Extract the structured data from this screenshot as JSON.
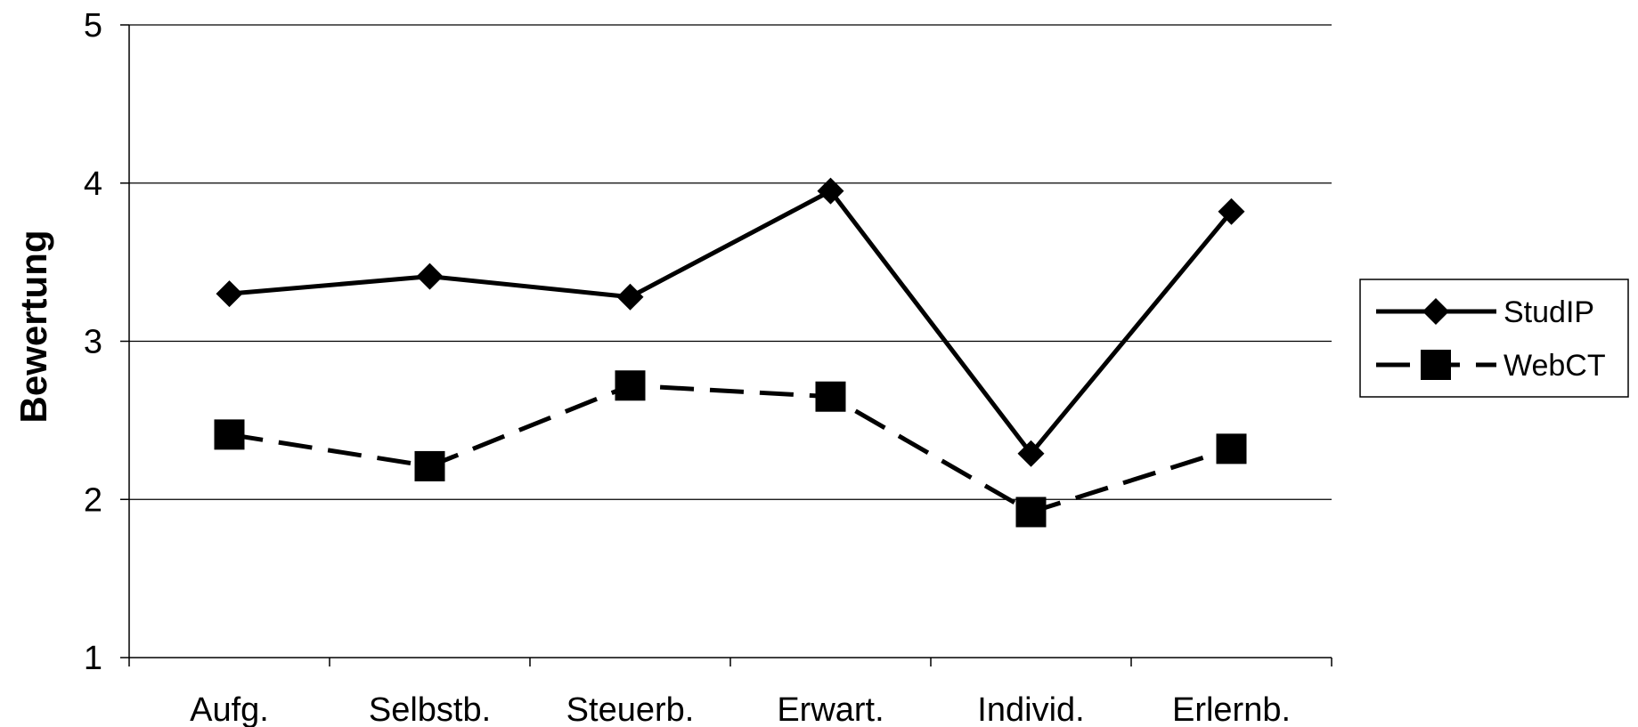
{
  "chart_data": {
    "type": "line",
    "categories": [
      "Aufg.",
      "Selbstb.",
      "Steuerb.",
      "Erwart.",
      "Individ.",
      "Erlernb."
    ],
    "series": [
      {
        "name": "StudIP",
        "values": [
          3.3,
          3.41,
          3.28,
          3.95,
          2.29,
          3.82
        ],
        "line": "solid",
        "marker": "diamond",
        "color": "#000000"
      },
      {
        "name": "WebCT",
        "values": [
          2.41,
          2.21,
          2.72,
          2.65,
          1.92,
          2.32
        ],
        "line": "dashed",
        "marker": "square",
        "color": "#000000"
      }
    ],
    "title": "",
    "xlabel": "",
    "ylabel": "Bewertung",
    "ylim": [
      1,
      5
    ],
    "yticks": [
      "1",
      "2",
      "3",
      "4",
      "5"
    ],
    "grid": "horizontal",
    "legend_position": "right"
  }
}
